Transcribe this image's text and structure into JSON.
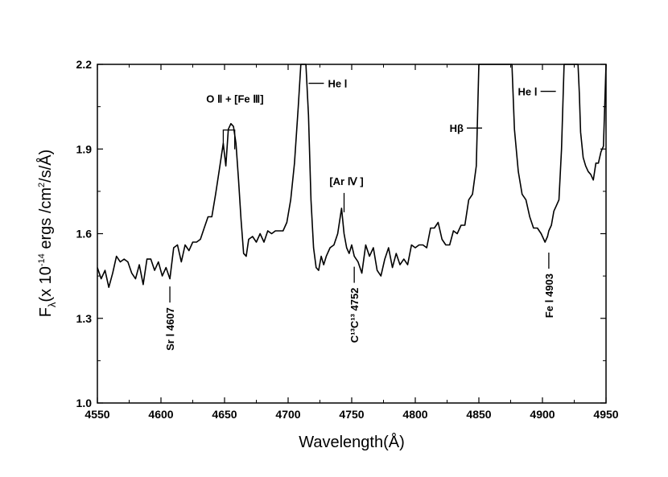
{
  "chart_data": {
    "type": "line",
    "title": "",
    "xlabel": "Wavelength(Å)",
    "ylabel": "F",
    "ylabel_sub": "λ",
    "ylabel_rest": "(x 10",
    "ylabel_exp": "-14",
    "ylabel_units": " ergs /cm",
    "ylabel_units_exp": "2",
    "ylabel_units_end": "/s/Å)",
    "xlim": [
      4550,
      4950
    ],
    "ylim": [
      1.0,
      2.2
    ],
    "xticks": [
      "4550",
      "4600",
      "4650",
      "4700",
      "4750",
      "4800",
      "4850",
      "4900",
      "4950"
    ],
    "yticks": [
      "1.0",
      "1.3",
      "1.6",
      "1.9",
      "2.2"
    ],
    "grid": false,
    "series": [
      {
        "x": [
          4550,
          4553,
          4556,
          4559,
          4562,
          4565,
          4568,
          4571,
          4574,
          4577,
          4580,
          4583,
          4586,
          4589,
          4592,
          4595,
          4598,
          4601,
          4604,
          4607,
          4610,
          4613,
          4616,
          4619,
          4622,
          4625,
          4628,
          4631,
          4634,
          4637,
          4640,
          4643,
          4646,
          4649,
          4651,
          4653,
          4655,
          4657,
          4659,
          4661,
          4663,
          4665,
          4667,
          4669,
          4672,
          4675,
          4678,
          4681,
          4684,
          4687,
          4690,
          4693,
          4696,
          4699,
          4702,
          4705,
          4708,
          4710,
          4712,
          4713,
          4714,
          4716,
          4718,
          4720,
          4722,
          4724,
          4726,
          4728,
          4730,
          4733,
          4736,
          4739,
          4742,
          4744,
          4746,
          4748,
          4750,
          4752,
          4755,
          4758,
          4761,
          4764,
          4767,
          4770,
          4773,
          4776,
          4779,
          4782,
          4785,
          4788,
          4791,
          4794,
          4797,
          4800,
          4803,
          4806,
          4809,
          4812,
          4815,
          4818,
          4821,
          4824,
          4827,
          4830,
          4833,
          4836,
          4839,
          4842,
          4845,
          4848,
          4850,
          4851,
          4852,
          4875,
          4876,
          4878,
          4881,
          4884,
          4887,
          4890,
          4893,
          4896,
          4899,
          4902,
          4904,
          4905,
          4907,
          4909,
          4911,
          4913,
          4915,
          4917,
          4918,
          4919,
          4927,
          4928,
          4929,
          4930,
          4932,
          4934,
          4936,
          4938,
          4940,
          4942,
          4944,
          4946,
          4948,
          4950
        ],
        "y": [
          1.48,
          1.44,
          1.47,
          1.41,
          1.46,
          1.52,
          1.5,
          1.51,
          1.5,
          1.46,
          1.44,
          1.49,
          1.42,
          1.51,
          1.51,
          1.47,
          1.5,
          1.45,
          1.48,
          1.44,
          1.55,
          1.56,
          1.5,
          1.56,
          1.54,
          1.57,
          1.57,
          1.58,
          1.62,
          1.66,
          1.66,
          1.74,
          1.83,
          1.92,
          1.84,
          1.97,
          1.99,
          1.98,
          1.92,
          1.79,
          1.65,
          1.53,
          1.52,
          1.58,
          1.59,
          1.57,
          1.6,
          1.57,
          1.61,
          1.6,
          1.61,
          1.61,
          1.61,
          1.64,
          1.72,
          1.85,
          2.05,
          2.2,
          2.2,
          2.2,
          2.2,
          2.02,
          1.72,
          1.55,
          1.48,
          1.47,
          1.52,
          1.49,
          1.52,
          1.55,
          1.56,
          1.6,
          1.69,
          1.6,
          1.55,
          1.53,
          1.56,
          1.52,
          1.5,
          1.46,
          1.56,
          1.52,
          1.55,
          1.47,
          1.45,
          1.51,
          1.55,
          1.48,
          1.53,
          1.49,
          1.51,
          1.49,
          1.56,
          1.55,
          1.56,
          1.56,
          1.55,
          1.62,
          1.62,
          1.64,
          1.58,
          1.56,
          1.56,
          1.61,
          1.6,
          1.63,
          1.63,
          1.72,
          1.74,
          1.84,
          2.2,
          2.2,
          2.2,
          2.2,
          2.2,
          1.97,
          1.82,
          1.74,
          1.72,
          1.66,
          1.62,
          1.62,
          1.6,
          1.57,
          1.59,
          1.61,
          1.63,
          1.68,
          1.7,
          1.72,
          1.9,
          2.2,
          2.2,
          2.2,
          2.2,
          2.2,
          2.1,
          1.96,
          1.87,
          1.84,
          1.82,
          1.81,
          1.79,
          1.85,
          1.85,
          1.89,
          1.91,
          2.2
        ]
      }
    ],
    "annotations": [
      {
        "text": "O Ⅱ + [Fe Ⅲ]",
        "x": 4655,
        "y": 2.07,
        "kind": "bracket",
        "x1": 4649,
        "x2": 4658
      },
      {
        "text": "He Ⅰ",
        "x": 4718,
        "y": 2.11,
        "kind": "tick-left"
      },
      {
        "text": "He Ⅰ",
        "x": 4908,
        "y": 2.11,
        "kind": "tick-right"
      },
      {
        "text": "Hβ",
        "x": 4850,
        "y": 1.98,
        "kind": "tick-right"
      },
      {
        "text": "[Ar Ⅳ ]",
        "x": 4744,
        "y": 1.75,
        "kind": "tick-below"
      },
      {
        "text": "Sr Ⅰ 4607",
        "x": 4607,
        "y": 1.43,
        "kind": "tick-below-vertical"
      },
      {
        "text": "C¹³C¹³ 4752",
        "x": 4752,
        "y": 1.5,
        "kind": "tick-below-vertical"
      },
      {
        "text": "Fe Ⅰ 4903",
        "x": 4905,
        "y": 1.55,
        "kind": "tick-below-vertical"
      }
    ]
  }
}
